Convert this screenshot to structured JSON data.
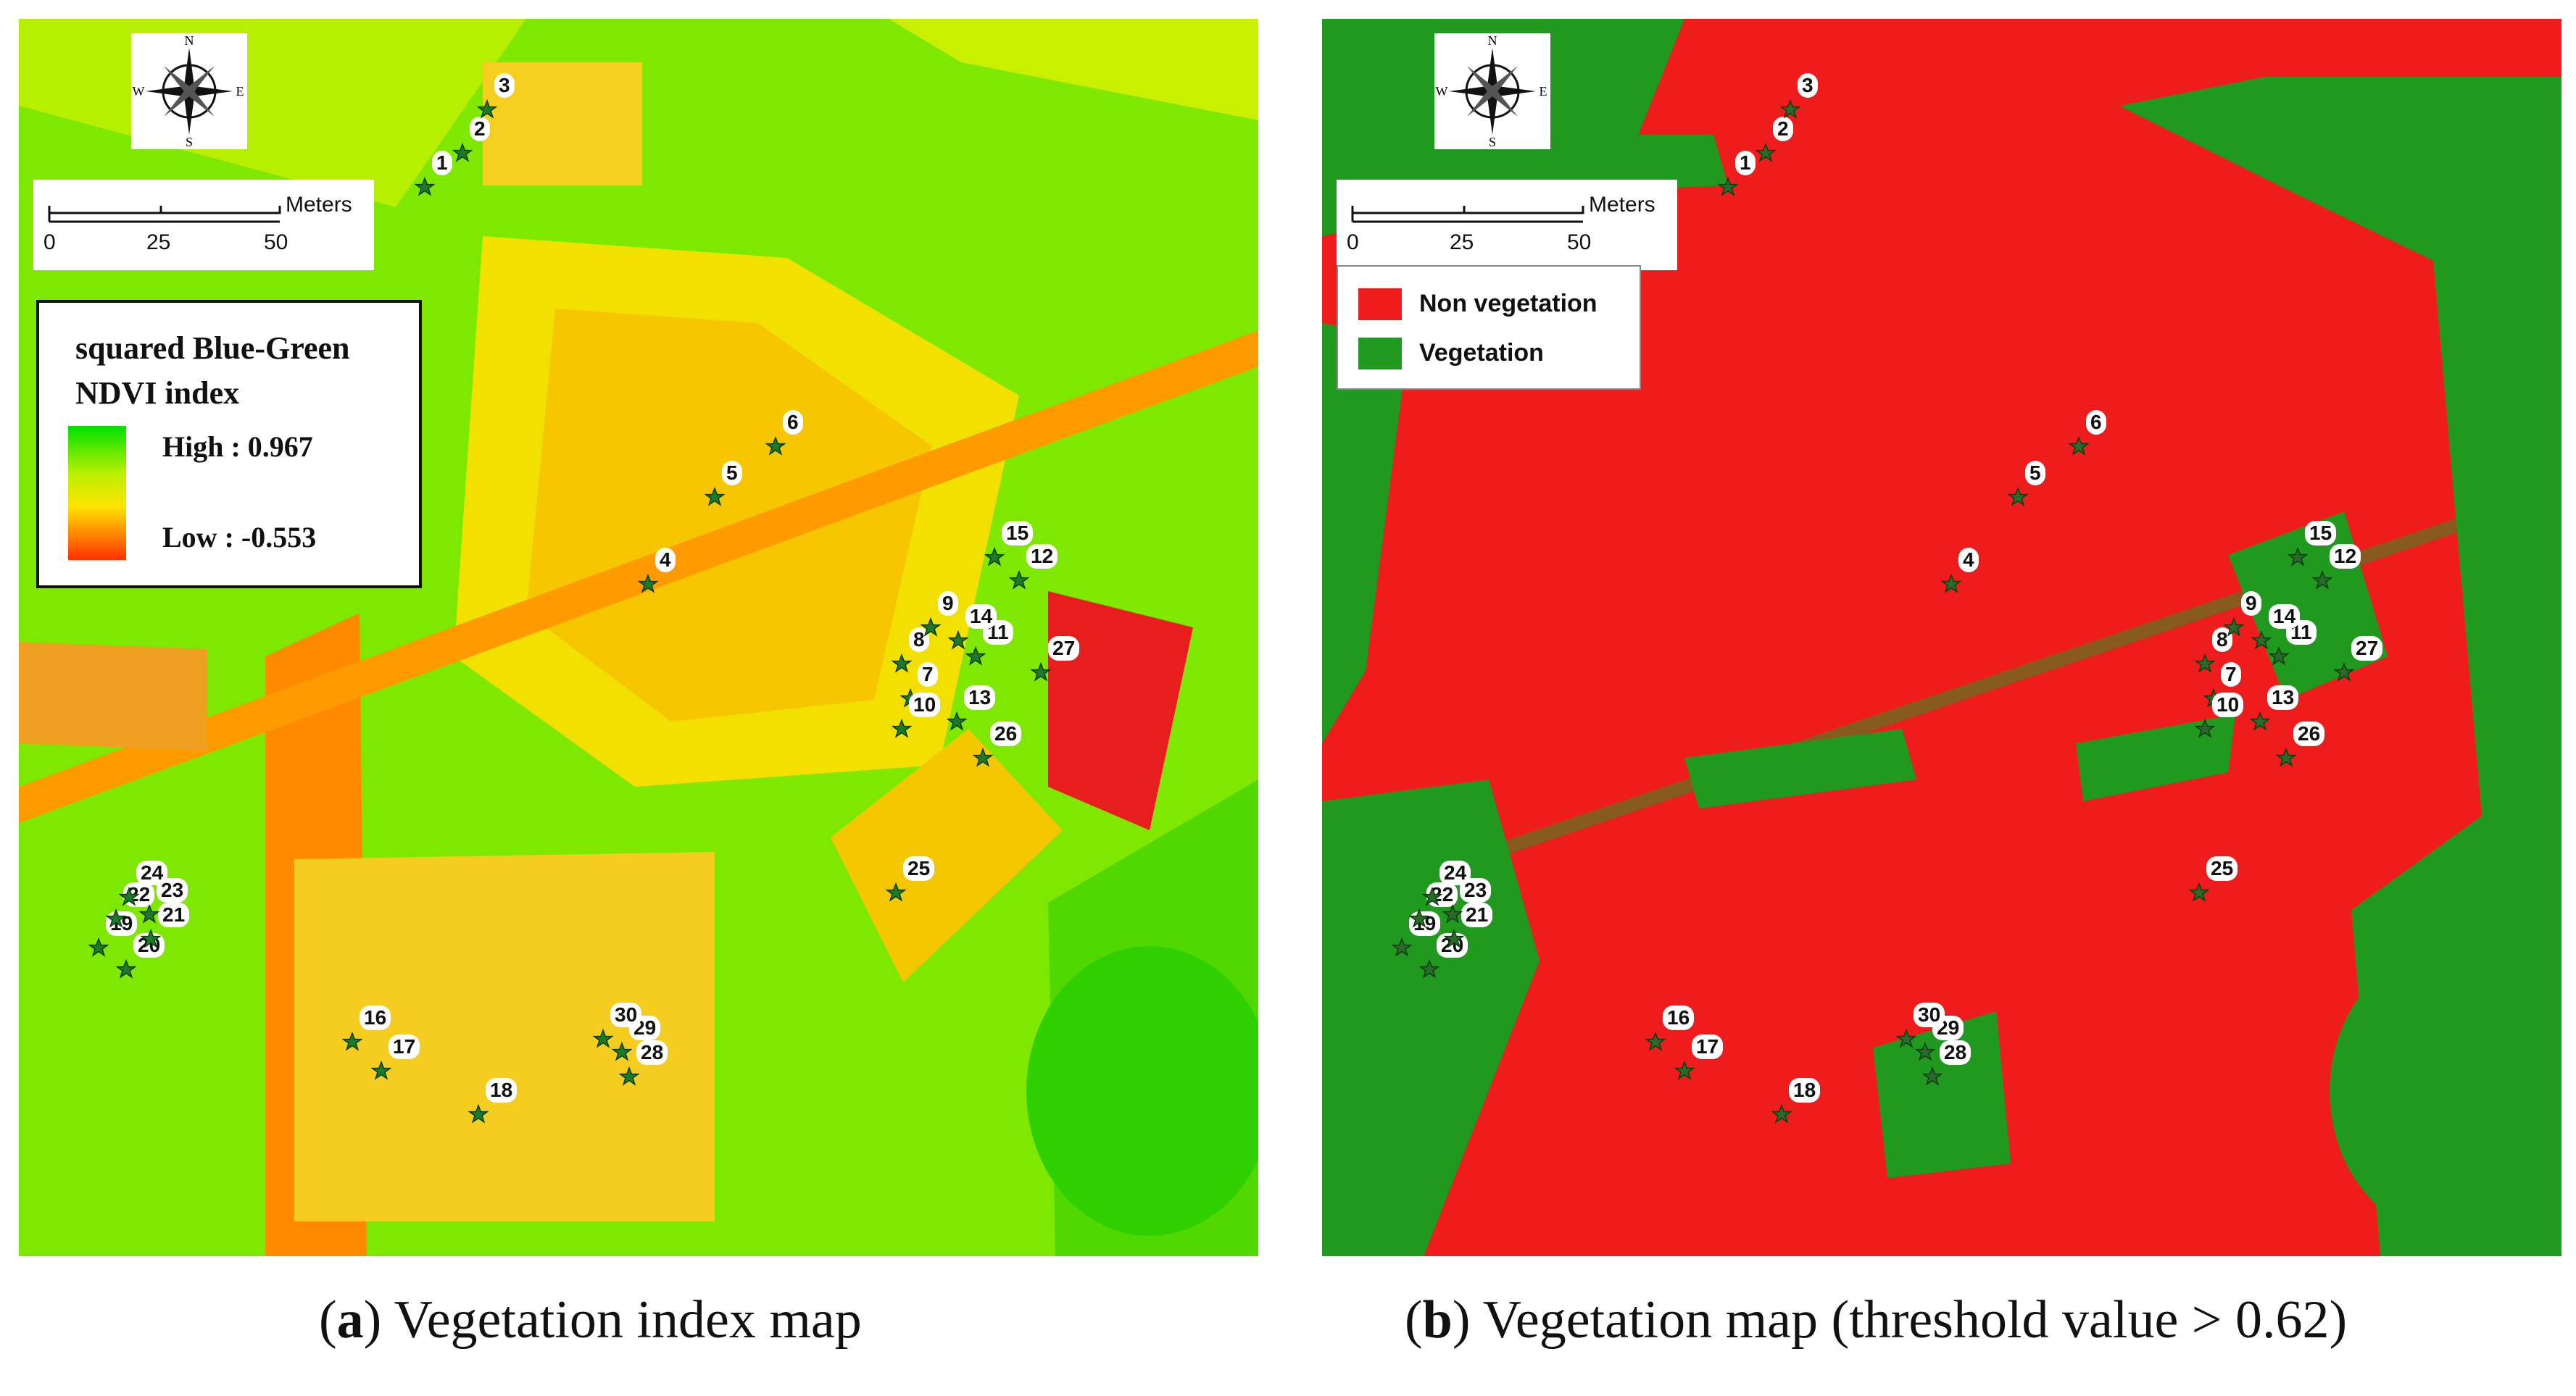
{
  "panel_a": {
    "legend": {
      "title_line1": "squared Blue-Green",
      "title_line2": "NDVI index",
      "high": "High : 0.967",
      "low": "Low  : -0.553",
      "colors": {
        "high": "#00e000",
        "mid": "#ffe400",
        "low": "#ff3000"
      }
    },
    "caption_letter": "a",
    "caption_text": " Vegetation index map"
  },
  "panel_b": {
    "legend": {
      "items": [
        {
          "label": "Non vegetation",
          "color": "#ee1c1c"
        },
        {
          "label": "Vegetation",
          "color": "#1f9a1f"
        }
      ]
    },
    "caption_letter": "b",
    "caption_text": " Vegetation map (threshold value > 0.62)"
  },
  "compass": {
    "n": "N",
    "s": "S",
    "e": "E",
    "w": "W"
  },
  "scale": {
    "ticks": [
      "0",
      "25",
      "50"
    ],
    "unit": "Meters"
  },
  "sample_points": [
    "1",
    "2",
    "3",
    "4",
    "5",
    "6",
    "7",
    "8",
    "9",
    "10",
    "11",
    "12",
    "13",
    "14",
    "15",
    "16",
    "17",
    "18",
    "19",
    "20",
    "21",
    "22",
    "23",
    "24",
    "25",
    "26",
    "27",
    "28",
    "29",
    "30"
  ]
}
